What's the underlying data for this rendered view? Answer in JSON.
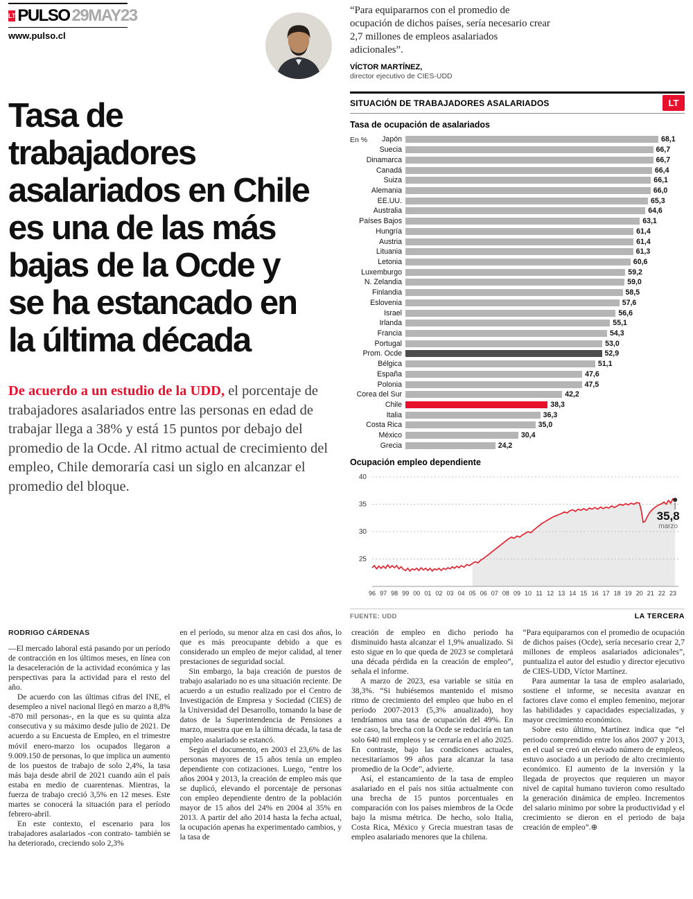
{
  "masthead": {
    "lt": "LT",
    "brand": "PULSO",
    "date": "29MAY23",
    "url": "www.pulso.cl"
  },
  "quote": {
    "text": "“Para equipararnos con el promedio de ocupación de dichos países, sería necesario crear 2,7 millones de empleos asalariados adicionales”.",
    "author": "VÍCTOR MARTÍNEZ,",
    "role": "director ejecutivo de CIES-UDD"
  },
  "headline": {
    "lines": [
      "Tasa de",
      "trabajadores",
      "asalariados en Chile",
      "es una de las más",
      "bajas de la Ocde y",
      "se ha estancado en",
      "la última década"
    ]
  },
  "lead": {
    "highlight": "De acuerdo a un estudio de la UDD,",
    "text": " el porcentaje de trabajadores asalariados entre las personas en edad de trabajar llega a 38% y está 15 puntos por debajo del promedio de la Ocde. Al ritmo actual de crecimiento del empleo, Chile demoraría casi un siglo en alcanzar el promedio del bloque."
  },
  "chart_panel": {
    "title": "SITUACIÓN DE TRABAJADORES ASALARIADOS",
    "lt_badge": "LT",
    "source": "FUENTE: UDD",
    "credit": "LA TERCERA"
  },
  "chart_data": [
    {
      "type": "bar",
      "orientation": "horizontal",
      "title": "Tasa de ocupación de asalariados",
      "unit_label": "En %",
      "xlim": [
        0,
        68.1
      ],
      "bar_color": "#b5b5b5",
      "highlight": {
        "Prom. Ocde": "#4d4d4d",
        "Chile": "#e8112d"
      },
      "categories": [
        "Japón",
        "Suecia",
        "Dinamarca",
        "Canadá",
        "Suiza",
        "Alemania",
        "EE.UU.",
        "Australia",
        "Países Bajos",
        "Hungría",
        "Austria",
        "Lituania",
        "Letonia",
        "Luxemburgo",
        "N. Zelandia",
        "Finlandia",
        "Eslovenia",
        "Israel",
        "Irlanda",
        "Francia",
        "Portugal",
        "Prom. Ocde",
        "Bélgica",
        "España",
        "Polonia",
        "Corea del Sur",
        "Chile",
        "Italia",
        "Costa Rica",
        "México",
        "Grecia"
      ],
      "values": [
        68.1,
        66.7,
        66.7,
        66.4,
        66.1,
        66.0,
        65.3,
        64.6,
        63.1,
        61.4,
        61.4,
        61.3,
        60.6,
        59.2,
        59.0,
        58.5,
        57.6,
        56.6,
        55.1,
        54.3,
        53.0,
        52.9,
        51.1,
        47.6,
        47.5,
        42.2,
        38.3,
        36.3,
        35.0,
        30.4,
        24.2
      ]
    },
    {
      "type": "line",
      "title": "Ocupación empleo dependiente",
      "ylim": [
        20,
        40
      ],
      "yticks": [
        25,
        30,
        35,
        40
      ],
      "xticks": [
        "96",
        "97",
        "98",
        "99",
        "00",
        "01",
        "02",
        "03",
        "04",
        "05",
        "06",
        "07",
        "08",
        "09",
        "10",
        "11",
        "12",
        "13",
        "14",
        "15",
        "16",
        "17",
        "18",
        "19",
        "20",
        "21",
        "22",
        "23"
      ],
      "line_color": "#e0252f",
      "area_from": 2005,
      "annotation": {
        "value": "35,8",
        "label": "marzo"
      },
      "points": [
        [
          1996,
          23.4
        ],
        [
          1996.2,
          23.8
        ],
        [
          1996.4,
          23.2
        ],
        [
          1996.6,
          23.7
        ],
        [
          1996.8,
          23.3
        ],
        [
          1997,
          23.7
        ],
        [
          1997.2,
          23.3
        ],
        [
          1997.4,
          23.9
        ],
        [
          1997.6,
          23.4
        ],
        [
          1997.8,
          23.8
        ],
        [
          1998,
          23.4
        ],
        [
          1998.2,
          23.8
        ],
        [
          1998.4,
          23.2
        ],
        [
          1998.6,
          23.6
        ],
        [
          1998.8,
          23.1
        ],
        [
          1999,
          22.9
        ],
        [
          1999.2,
          23.3
        ],
        [
          1999.4,
          22.8
        ],
        [
          1999.6,
          23.2
        ],
        [
          1999.8,
          23.0
        ],
        [
          2000,
          23.3
        ],
        [
          2000.2,
          22.9
        ],
        [
          2000.4,
          23.4
        ],
        [
          2000.6,
          23.0
        ],
        [
          2000.8,
          23.3
        ],
        [
          2001,
          22.9
        ],
        [
          2001.2,
          23.3
        ],
        [
          2001.4,
          22.8
        ],
        [
          2001.6,
          23.2
        ],
        [
          2001.8,
          23.0
        ],
        [
          2002,
          23.3
        ],
        [
          2002.2,
          22.9
        ],
        [
          2002.4,
          23.3
        ],
        [
          2002.6,
          23.1
        ],
        [
          2002.8,
          23.4
        ],
        [
          2003,
          23.2
        ],
        [
          2003.2,
          23.6
        ],
        [
          2003.4,
          23.3
        ],
        [
          2003.6,
          23.7
        ],
        [
          2003.8,
          23.4
        ],
        [
          2004,
          23.8
        ],
        [
          2004.25,
          23.5
        ],
        [
          2004.5,
          24.0
        ],
        [
          2004.75,
          23.8
        ],
        [
          2005,
          24.2
        ],
        [
          2005.25,
          24.5
        ],
        [
          2005.5,
          24.3
        ],
        [
          2005.75,
          24.8
        ],
        [
          2006,
          25.1
        ],
        [
          2006.25,
          25.5
        ],
        [
          2006.5,
          25.9
        ],
        [
          2006.75,
          26.3
        ],
        [
          2007,
          26.7
        ],
        [
          2007.25,
          27.1
        ],
        [
          2007.5,
          27.5
        ],
        [
          2007.75,
          27.9
        ],
        [
          2008,
          28.3
        ],
        [
          2008.25,
          28.7
        ],
        [
          2008.5,
          29.0
        ],
        [
          2008.75,
          28.8
        ],
        [
          2009,
          29.2
        ],
        [
          2009.25,
          29.0
        ],
        [
          2009.5,
          29.4
        ],
        [
          2009.75,
          29.7
        ],
        [
          2010,
          30.0
        ],
        [
          2010.25,
          29.8
        ],
        [
          2010.5,
          30.3
        ],
        [
          2010.75,
          30.7
        ],
        [
          2011,
          31.1
        ],
        [
          2011.25,
          31.5
        ],
        [
          2011.5,
          31.8
        ],
        [
          2011.75,
          32.1
        ],
        [
          2012,
          32.4
        ],
        [
          2012.25,
          32.7
        ],
        [
          2012.5,
          32.9
        ],
        [
          2012.75,
          33.1
        ],
        [
          2013,
          33.3
        ],
        [
          2013.25,
          33.6
        ],
        [
          2013.5,
          33.4
        ],
        [
          2013.75,
          33.8
        ],
        [
          2014,
          34.0
        ],
        [
          2014.25,
          33.7
        ],
        [
          2014.5,
          34.1
        ],
        [
          2014.75,
          33.9
        ],
        [
          2015,
          34.2
        ],
        [
          2015.25,
          33.9
        ],
        [
          2015.5,
          34.3
        ],
        [
          2015.75,
          34.1
        ],
        [
          2016,
          34.4
        ],
        [
          2016.25,
          34.1
        ],
        [
          2016.5,
          34.5
        ],
        [
          2016.75,
          34.2
        ],
        [
          2017,
          34.5
        ],
        [
          2017.25,
          34.3
        ],
        [
          2017.5,
          34.7
        ],
        [
          2017.75,
          34.4
        ],
        [
          2018,
          34.7
        ],
        [
          2018.25,
          35.0
        ],
        [
          2018.5,
          34.8
        ],
        [
          2018.75,
          35.1
        ],
        [
          2019,
          34.9
        ],
        [
          2019.25,
          35.2
        ],
        [
          2019.5,
          35.0
        ],
        [
          2019.75,
          35.3
        ],
        [
          2020,
          35.2
        ],
        [
          2020.17,
          33.8
        ],
        [
          2020.33,
          31.7
        ],
        [
          2020.5,
          31.9
        ],
        [
          2020.67,
          32.6
        ],
        [
          2020.83,
          33.2
        ],
        [
          2021,
          33.7
        ],
        [
          2021.25,
          34.2
        ],
        [
          2021.5,
          34.6
        ],
        [
          2021.75,
          34.9
        ],
        [
          2022,
          35.1
        ],
        [
          2022.2,
          35.4
        ],
        [
          2022.4,
          35.0
        ],
        [
          2022.6,
          35.7
        ],
        [
          2022.8,
          35.2
        ],
        [
          2023,
          36.0
        ],
        [
          2023.2,
          35.8
        ]
      ]
    }
  ],
  "body": {
    "byline": "RODRIGO CÁRDENAS",
    "columns": [
      {
        "paragraphs": [
          "—El mercado laboral está pasando por un período de contracción en los últimos meses, en línea con la desaceleración de la actividad económica y las perspectivas para la actividad para el resto del año.",
          "De acuerdo con las últimas cifras del INE, el desempleo a nivel nacional llegó en marzo a 8,8% -870 mil personas-, en la que es su quinta alza consecutiva y su máximo desde julio de 2021. De acuerdo a su Encuesta de Empleo, en el trimestre móvil enero-marzo los ocupados llegaron a 9.009.150 de personas, lo que implica un aumento de los puestos de trabajo de solo 2,4%, la tasa más baja desde abril de 2021 cuando aún el país estaba en medio de cuarentenas. Mientras, la fuerza de trabajo creció 3,5% en 12 meses. Este martes se conocerá la situación para el período febrero-abril.",
          "En este contexto, el escenario para los trabajadores asalariados -con contrato- también se ha deteriorado, creciendo solo 2,3%"
        ]
      },
      {
        "paragraphs": [
          "en el período, su menor alza en casi dos años, lo que es más preocupante debido a que es considerado un empleo de mejor calidad, al tener prestaciones de seguridad social.",
          "Sin embargo, la baja creación de puestos de trabajo asalariado no es una situación reciente. De acuerdo a un estudio realizado por el Centro de Investigación de Empresa y Sociedad (CIES) de la Universidad del Desarrollo, tomando la base de datos de la Superintendencia de Pensiones a marzo, muestra que en la última década, la tasa de empleo asalariado se estancó.",
          "Según el documento, en 2003 el 23,6% de las personas mayores de 15 años tenía un empleo dependiente con cotizaciones. Luego, “entre los años 2004 y 2013, la creación de empleo más que se duplicó, elevando el porcentaje de personas con empleo dependiente dentro de la población mayor de 15 años del 24% en 2004 al 35% en 2013. A partir del año 2014 hasta la fecha actual, la ocupación apenas ha experimentado cambios, y la tasa de"
        ]
      },
      {
        "paragraphs": [
          "creación de empleo en dicho periodo ha disminuido hasta alcanzar el 1,9% anualizado. Si esto sigue en lo que queda de 2023 se completará una década pérdida en la creación de empleo”, señala el informe.",
          "A marzo de 2023, esa variable se sitúa en 38,3%. “Si hubiésemos mantenido el mismo ritmo de crecimiento del empleo que hubo en el período 2007-2013 (5,3% anualizado), hoy tendríamos una tasa de ocupación del 49%. En ese caso, la brecha con la Ocde se reduciría en tan solo 640 mil empleos y se cerraría en el año 2025. En contraste, bajo las condiciones actuales, necesitaríamos 99 años para alcanzar la tasa promedio de la Ocde”, advierte.",
          "Así, el estancamiento de la tasa de empleo asalariado en el país nos sitúa actualmente con una brecha de 15 puntos porcentuales en comparación con los países miembros de la Ocde bajo la misma métrica. De hecho, solo Italia, Costa Rica, México y Grecia muestran tasas de empleo asalariado menores que la chilena."
        ]
      },
      {
        "paragraphs": [
          "“Para equipararnos con el promedio de ocupación de dichos países (Ocde), sería necesario crear 2,7 millones de empleos asalariados adicionales”, puntualiza el autor del estudio y director ejecutivo de CIES-UDD, Víctor Martínez.",
          "Para aumentar la tasa de empleo asalariado, sostiene el informe, se necesita avanzar en factores clave como el empleo femenino, mejorar las habilidades y capacidades especializadas, y mayor crecimiento económico.",
          "Sobre esto último, Martínez indica que “el periodo comprendido entre los años 2007 y 2013, en el cual se creó un elevado número de empleos, estuvo asociado a un período de alto crecimiento económico. El aumento de la inversión y la llegada de proyectos que requieren un mayor nivel de capital humano tuvieron como resultado la generación dinámica de empleo. Incrementos del salario mínimo por sobre la productividad y el crecimiento se dieron en el periodo de baja creación de empleo”.⊕"
        ]
      }
    ]
  }
}
